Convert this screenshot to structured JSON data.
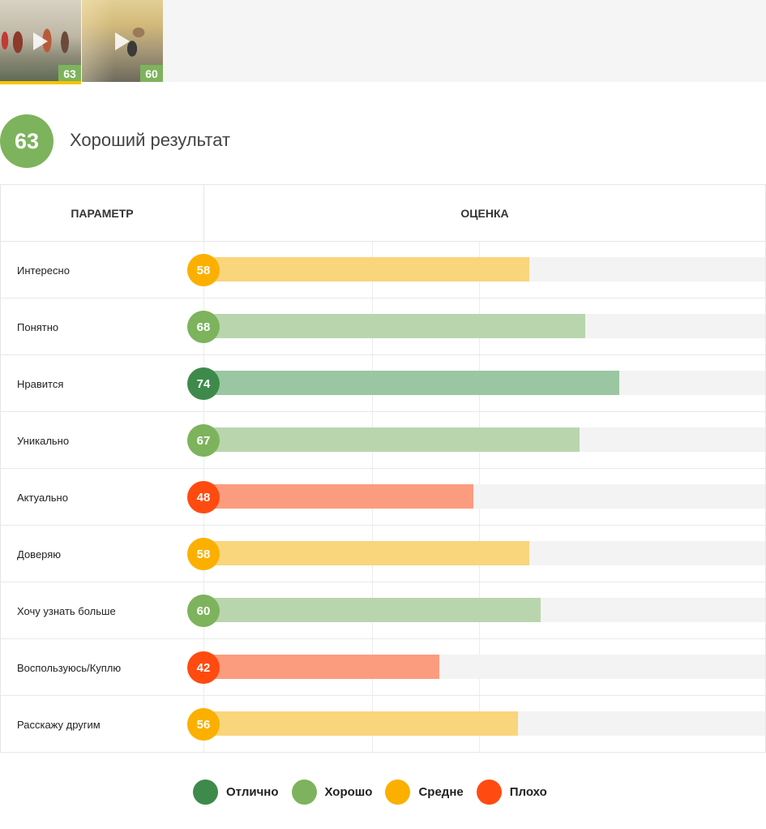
{
  "thumbnails": [
    {
      "score": "63",
      "active": true
    },
    {
      "score": "60",
      "active": false
    }
  ],
  "result": {
    "score": "63",
    "label": "Хороший результат",
    "color": "#7db35c"
  },
  "table": {
    "header_param": "ПАРАМЕТР",
    "header_score": "ОЦЕНКА"
  },
  "rows": [
    {
      "label": "Интересно",
      "value": 58,
      "rating": "medium"
    },
    {
      "label": "Понятно",
      "value": 68,
      "rating": "good"
    },
    {
      "label": "Нравится",
      "value": 74,
      "rating": "excellent"
    },
    {
      "label": "Уникально",
      "value": 67,
      "rating": "good"
    },
    {
      "label": "Актуально",
      "value": 48,
      "rating": "bad"
    },
    {
      "label": "Доверяю",
      "value": 58,
      "rating": "medium"
    },
    {
      "label": "Хочу узнать больше",
      "value": 60,
      "rating": "good"
    },
    {
      "label": "Воспользуюсь/Куплю",
      "value": 42,
      "rating": "bad"
    },
    {
      "label": "Расскажу другим",
      "value": 56,
      "rating": "medium"
    }
  ],
  "colors": {
    "excellent": {
      "badge": "#3e8a4b",
      "bar": "#9bc6a2"
    },
    "good": {
      "badge": "#7db35c",
      "bar": "#b9d5ae"
    },
    "medium": {
      "badge": "#fbb000",
      "bar": "#f9d57c"
    },
    "bad": {
      "badge": "#ff4b10",
      "bar": "#fc9c7e"
    }
  },
  "legend": [
    {
      "label": "Отлично",
      "color": "#3e8a4b"
    },
    {
      "label": "Хорошо",
      "color": "#7db35c"
    },
    {
      "label": "Средне",
      "color": "#fbb000"
    },
    {
      "label": "Плохо",
      "color": "#ff4b10"
    }
  ]
}
